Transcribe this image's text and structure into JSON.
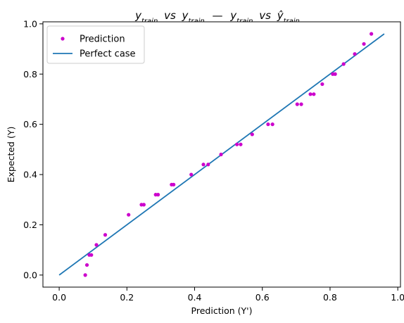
{
  "chart_data": {
    "type": "scatter",
    "title_main": "y",
    "title_sub_train": "train",
    "title_vs": "vs",
    "title_dash": "—",
    "title_hat_y": "ŷ",
    "xlabel": "Prediction (Y')",
    "ylabel": "Expected (Y)",
    "xlim": [
      -0.048,
      1.008
    ],
    "ylim": [
      -0.048,
      1.008
    ],
    "xticks": [
      0.0,
      0.2,
      0.4,
      0.6,
      0.8,
      1.0
    ],
    "yticks": [
      0.0,
      0.2,
      0.4,
      0.6,
      0.8,
      1.0
    ],
    "xtick_labels": [
      "0.0",
      "0.2",
      "0.4",
      "0.6",
      "0.8",
      "1.0"
    ],
    "ytick_labels": [
      "0.0",
      "0.2",
      "0.4",
      "0.6",
      "0.8",
      "1.0"
    ],
    "grid": false,
    "legend_placement": "upper-left",
    "series": [
      {
        "name": "Prediction",
        "kind": "points",
        "color": "#cc00cc",
        "points": [
          [
            0.077,
            0.0
          ],
          [
            0.082,
            0.04
          ],
          [
            0.089,
            0.08
          ],
          [
            0.095,
            0.08
          ],
          [
            0.11,
            0.12
          ],
          [
            0.136,
            0.16
          ],
          [
            0.205,
            0.24
          ],
          [
            0.243,
            0.28
          ],
          [
            0.25,
            0.28
          ],
          [
            0.285,
            0.32
          ],
          [
            0.292,
            0.32
          ],
          [
            0.332,
            0.36
          ],
          [
            0.338,
            0.36
          ],
          [
            0.39,
            0.4
          ],
          [
            0.426,
            0.44
          ],
          [
            0.44,
            0.44
          ],
          [
            0.478,
            0.48
          ],
          [
            0.525,
            0.52
          ],
          [
            0.536,
            0.52
          ],
          [
            0.57,
            0.56
          ],
          [
            0.617,
            0.6
          ],
          [
            0.63,
            0.6
          ],
          [
            0.703,
            0.68
          ],
          [
            0.715,
            0.68
          ],
          [
            0.742,
            0.72
          ],
          [
            0.752,
            0.72
          ],
          [
            0.777,
            0.76
          ],
          [
            0.808,
            0.8
          ],
          [
            0.815,
            0.8
          ],
          [
            0.84,
            0.84
          ],
          [
            0.873,
            0.88
          ],
          [
            0.9,
            0.92
          ],
          [
            0.922,
            0.96
          ]
        ]
      },
      {
        "name": "Perfect case",
        "kind": "line",
        "color": "#1f77b4",
        "points": [
          [
            0.0,
            0.0
          ],
          [
            0.96,
            0.96
          ]
        ]
      }
    ]
  }
}
